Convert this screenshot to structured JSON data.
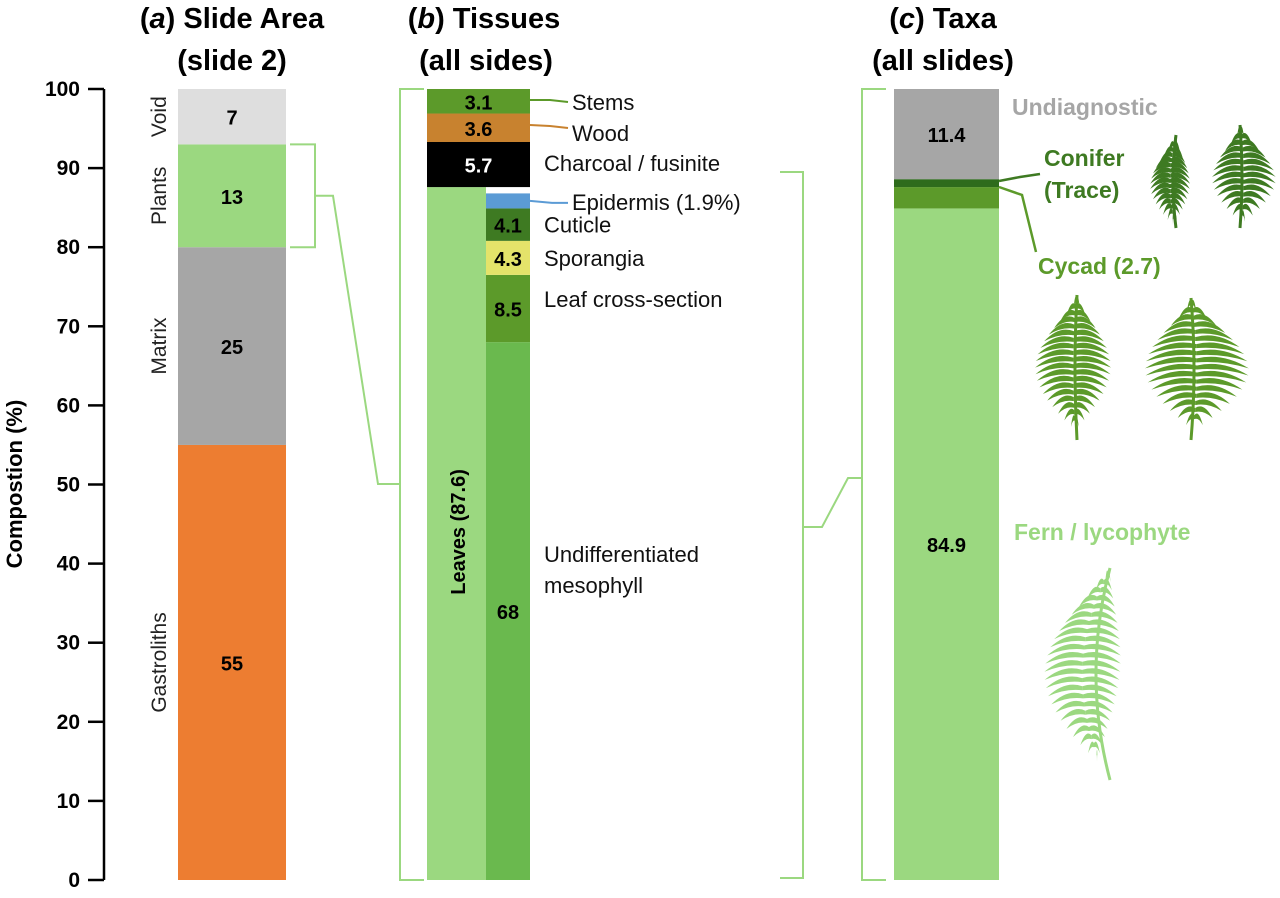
{
  "chart_data": [
    {
      "type": "bar",
      "stacked": true,
      "panel_letter": "a",
      "title_text": " Slide Area",
      "title_line2": "(slide 2)",
      "ylabel": "Compostion (%)",
      "ylim": [
        0,
        100
      ],
      "yticks": [
        "0",
        "10",
        "20",
        "30",
        "40",
        "50",
        "60",
        "70",
        "80",
        "90",
        "100"
      ],
      "segments": [
        {
          "name": "Gastroliths",
          "value": 55,
          "label": "55",
          "color": "#ed7d31",
          "text_color": "#000000"
        },
        {
          "name": "Matrix",
          "value": 25,
          "label": "25",
          "color": "#a6a6a6",
          "text_color": "#000000"
        },
        {
          "name": "Plants",
          "value": 13,
          "label": "13",
          "color": "#9bd880",
          "text_color": "#000000"
        },
        {
          "name": "Void",
          "value": 7,
          "label": "7",
          "color": "#dedede",
          "text_color": "#000000"
        }
      ]
    },
    {
      "type": "bar",
      "stacked": true,
      "panel_letter": "b",
      "title_text": " Tissues",
      "title_line2": "(all sides)",
      "ylim": [
        0,
        100
      ],
      "top_segments": [
        {
          "name": "Stems",
          "value": 3.1,
          "label": "3.1",
          "color": "#5c9a2a",
          "text_color": "#000000",
          "line_color": "#5c9a2a"
        },
        {
          "name": "Wood",
          "value": 3.6,
          "label": "3.6",
          "color": "#c8822f",
          "text_color": "#000000",
          "line_color": "#c8822f"
        },
        {
          "name": "Charcoal / fusinite",
          "value": 5.7,
          "label": "5.7",
          "color": "#000000",
          "text_color": "#ffffff",
          "line_color": "#9bd880"
        }
      ],
      "leaves_total": {
        "label": "Leaves (87.6)",
        "value": 87.6,
        "color": "#9bd880"
      },
      "leaf_segments": [
        {
          "name": "Epidermis (1.9%)",
          "value": 1.9,
          "label": "",
          "color": "#5b9bd5",
          "text_color": "#000000"
        },
        {
          "name": "Cuticle",
          "value": 4.1,
          "label": "4.1",
          "color": "#3e7a22",
          "text_color": "#000000"
        },
        {
          "name": "Sporangia",
          "value": 4.3,
          "label": "4.3",
          "color": "#e4e36a",
          "text_color": "#000000"
        },
        {
          "name": "Leaf cross-section",
          "value": 8.5,
          "label": "8.5",
          "color": "#5c9a2a",
          "text_color": "#000000"
        },
        {
          "name": "Undifferentiated",
          "name_line2": "mesophyll",
          "value": 68,
          "label": "68",
          "color": "#6ab94e",
          "text_color": "#000000"
        }
      ]
    },
    {
      "type": "bar",
      "stacked": true,
      "panel_letter": "c",
      "title_text": " Taxa",
      "title_line2": "(all slides)",
      "ylim": [
        0,
        100
      ],
      "segments": [
        {
          "name": "Undiagnostic",
          "value": 11.4,
          "label": "11.4",
          "color": "#a6a6a6",
          "text_color": "#000000",
          "name_color": "#a6a6a6"
        },
        {
          "name": "Conifer",
          "name_line2": "(Trace)",
          "value": 1.0,
          "label": "",
          "color": "#2e6b1c",
          "text_color": "#000000",
          "name_color": "#3e7a22"
        },
        {
          "name": "Cycad (2.7)",
          "value": 2.7,
          "label": "",
          "color": "#5c9a2a",
          "text_color": "#000000",
          "name_color": "#5c9a2a"
        },
        {
          "name": "Fern / lycophyte",
          "value": 84.9,
          "label": "84.9",
          "color": "#9bd880",
          "text_color": "#000000",
          "name_color": "#9bd880"
        }
      ]
    }
  ],
  "colors": {
    "bracket": "#9bd880",
    "axis": "#000000",
    "conifer_art": "#3e7a22",
    "cycad_art": "#5c9a2a",
    "fern_art": "#9bd880"
  },
  "icons": [
    "conifer-sprig-icon",
    "conifer-branch-icon",
    "cycad-frond-icon",
    "cycad-leaf-icon",
    "fern-frond-icon"
  ]
}
